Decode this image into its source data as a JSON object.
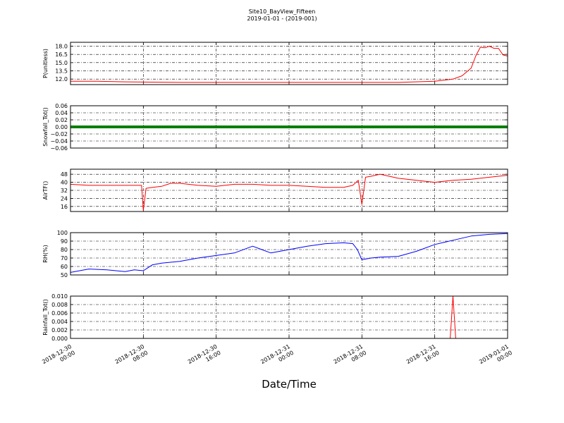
{
  "figure": {
    "title": "Site10_BayView_Fifteen",
    "subtitle": "2019-01-01 - (2019-001)",
    "xlabel": "Date/Time"
  },
  "chart_data": {
    "type": "line",
    "x_axis": {
      "range": [
        "2018-12-30 00:00",
        "2019-01-01 00:00"
      ],
      "tick_labels": [
        [
          "2018-12-30",
          "00:00"
        ],
        [
          "2018-12-30",
          "08:00"
        ],
        [
          "2018-12-30",
          "16:00"
        ],
        [
          "2018-12-31",
          "00:00"
        ],
        [
          "2018-12-31",
          "08:00"
        ],
        [
          "2018-12-31",
          "16:00"
        ],
        [
          "2019-01-01",
          "00:00"
        ]
      ],
      "tick_hours": [
        0,
        8,
        16,
        24,
        32,
        40,
        48
      ]
    },
    "grid": true,
    "panels": [
      {
        "ylabel": "P(unitless)",
        "ylim": [
          11.0,
          18.7
        ],
        "yticks": [
          "12.0",
          "13.5",
          "15.0",
          "16.5",
          "18.0"
        ],
        "ytick_values": [
          12.0,
          13.5,
          15.0,
          16.5,
          18.0
        ],
        "color": "#ff0000",
        "series": [
          {
            "x_hours": [
              0,
              3,
              6,
              12,
              18,
              24,
              30,
              36,
              40,
              42,
              43,
              44,
              44.5,
              45,
              45.5,
              46,
              46.5,
              47,
              47.5,
              48
            ],
            "values": [
              11.6,
              11.6,
              11.5,
              11.4,
              11.4,
              11.4,
              11.4,
              11.4,
              11.6,
              12.0,
              12.6,
              14.0,
              16.2,
              17.8,
              17.7,
              18.0,
              17.6,
              17.6,
              16.4,
              16.2
            ]
          }
        ]
      },
      {
        "ylabel": "Snowfall_Tot()",
        "ylim": [
          -0.06,
          0.06
        ],
        "yticks": [
          "−0.06",
          "−0.04",
          "−0.02",
          "0.00",
          "0.02",
          "0.04",
          "0.06"
        ],
        "ytick_values": [
          -0.06,
          -0.04,
          -0.02,
          0.0,
          0.02,
          0.04,
          0.06
        ],
        "color": "#007f00",
        "series": [
          {
            "x_hours": [
              0,
              48
            ],
            "values": [
              0,
              0
            ]
          }
        ]
      },
      {
        "ylabel": "AirTF()",
        "ylim": [
          11,
          53
        ],
        "yticks": [
          "16",
          "24",
          "32",
          "40",
          "48"
        ],
        "ytick_values": [
          16,
          24,
          32,
          40,
          48
        ],
        "color": "#ff0000",
        "series": [
          {
            "x_hours": [
              0,
              2,
              4,
              6,
              7,
              7.8,
              8,
              8.3,
              9,
              10,
              11,
              12,
              14,
              16,
              18,
              20,
              22,
              24,
              26,
              28,
              30,
              31,
              31.6,
              32,
              32.4,
              33,
              34,
              35,
              36,
              38,
              40,
              42,
              44,
              46,
              48
            ],
            "values": [
              38,
              37,
              37,
              37,
              37,
              37,
              12,
              34,
              35,
              36,
              39,
              39,
              37,
              36,
              38,
              38,
              37,
              37,
              36,
              35,
              35,
              37,
              42,
              18,
              45,
              46,
              48,
              46,
              44,
              42,
              40,
              42,
              43,
              45,
              47
            ]
          }
        ]
      },
      {
        "ylabel": "RH(%)",
        "ylim": [
          50,
          100
        ],
        "yticks": [
          "50",
          "60",
          "70",
          "80",
          "90",
          "100"
        ],
        "ytick_values": [
          50,
          60,
          70,
          80,
          90,
          100
        ],
        "color": "#0000ff",
        "series": [
          {
            "x_hours": [
              0,
              2,
              4,
              6,
              7,
              8,
              9,
              10,
              12,
              14,
              16,
              18,
              20,
              21,
              22,
              24,
              26,
              28,
              30,
              31,
              31.5,
              32,
              33,
              34,
              36,
              38,
              40,
              42,
              44,
              46,
              48
            ],
            "values": [
              53,
              57,
              56,
              54,
              56,
              55,
              62,
              64,
              66,
              70,
              73,
              76,
              84,
              80,
              76,
              80,
              84,
              87,
              88,
              87,
              80,
              68,
              70,
              71,
              72,
              78,
              86,
              91,
              96,
              98,
              99
            ]
          }
        ]
      },
      {
        "ylabel": "Rainfall_Tot()",
        "ylim": [
          0,
          0.01
        ],
        "yticks": [
          "0.000",
          "0.002",
          "0.004",
          "0.006",
          "0.008",
          "0.010"
        ],
        "ytick_values": [
          0,
          0.002,
          0.004,
          0.006,
          0.008,
          0.01
        ],
        "color": "#ff0000",
        "series": [
          {
            "x_hours": [
              0,
              41.7,
              42.0,
              42.3,
              48
            ],
            "values": [
              0,
              0,
              0.01,
              0,
              0
            ]
          }
        ]
      }
    ]
  }
}
